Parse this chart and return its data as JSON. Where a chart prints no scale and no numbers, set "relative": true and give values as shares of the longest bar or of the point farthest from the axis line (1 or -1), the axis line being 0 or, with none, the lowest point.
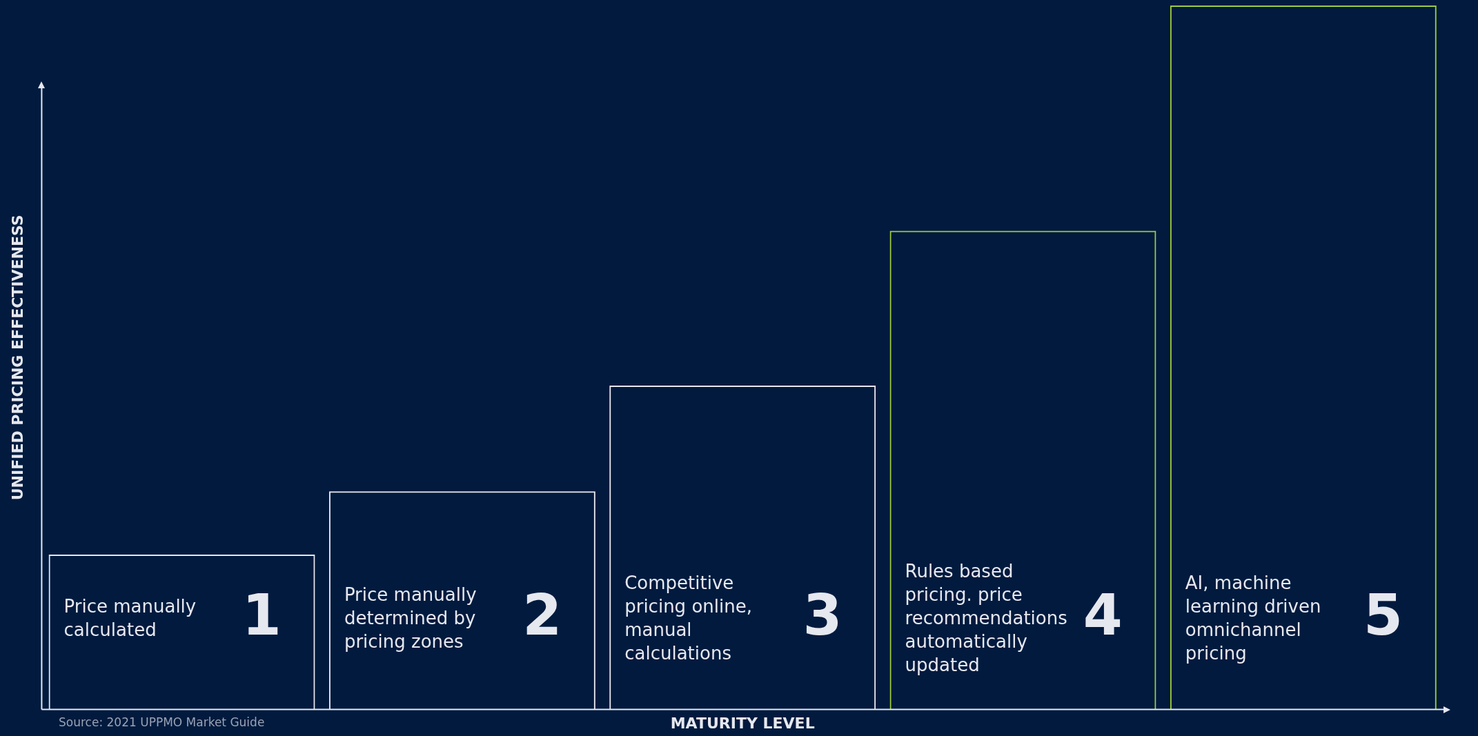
{
  "chart_data": {
    "type": "bar",
    "relative": true,
    "xlabel": "MATURITY LEVEL",
    "ylabel": "UNIFIED PRICING EFFECTIVENESS",
    "categories": [
      "1",
      "2",
      "3",
      "4",
      "5"
    ],
    "values": [
      0.22,
      0.31,
      0.46,
      0.68,
      1
    ],
    "colors": [
      "#e6e8ef",
      "#e6e8ef",
      "#e6e8ef",
      "#9ccc3c",
      "#9ccc3c"
    ],
    "tick_labels": false,
    "grid": false,
    "legend": false,
    "annotations": [
      "Price manually calculated",
      "Price manually determined by pricing zones",
      "Competitive pricing online, manual calculations",
      "Rules based pricing. price recommendations automatically updated",
      "AI, machine learning driven omnichannel pricing",
      "Source: 2021 UPPMO Market Guide"
    ]
  }
}
